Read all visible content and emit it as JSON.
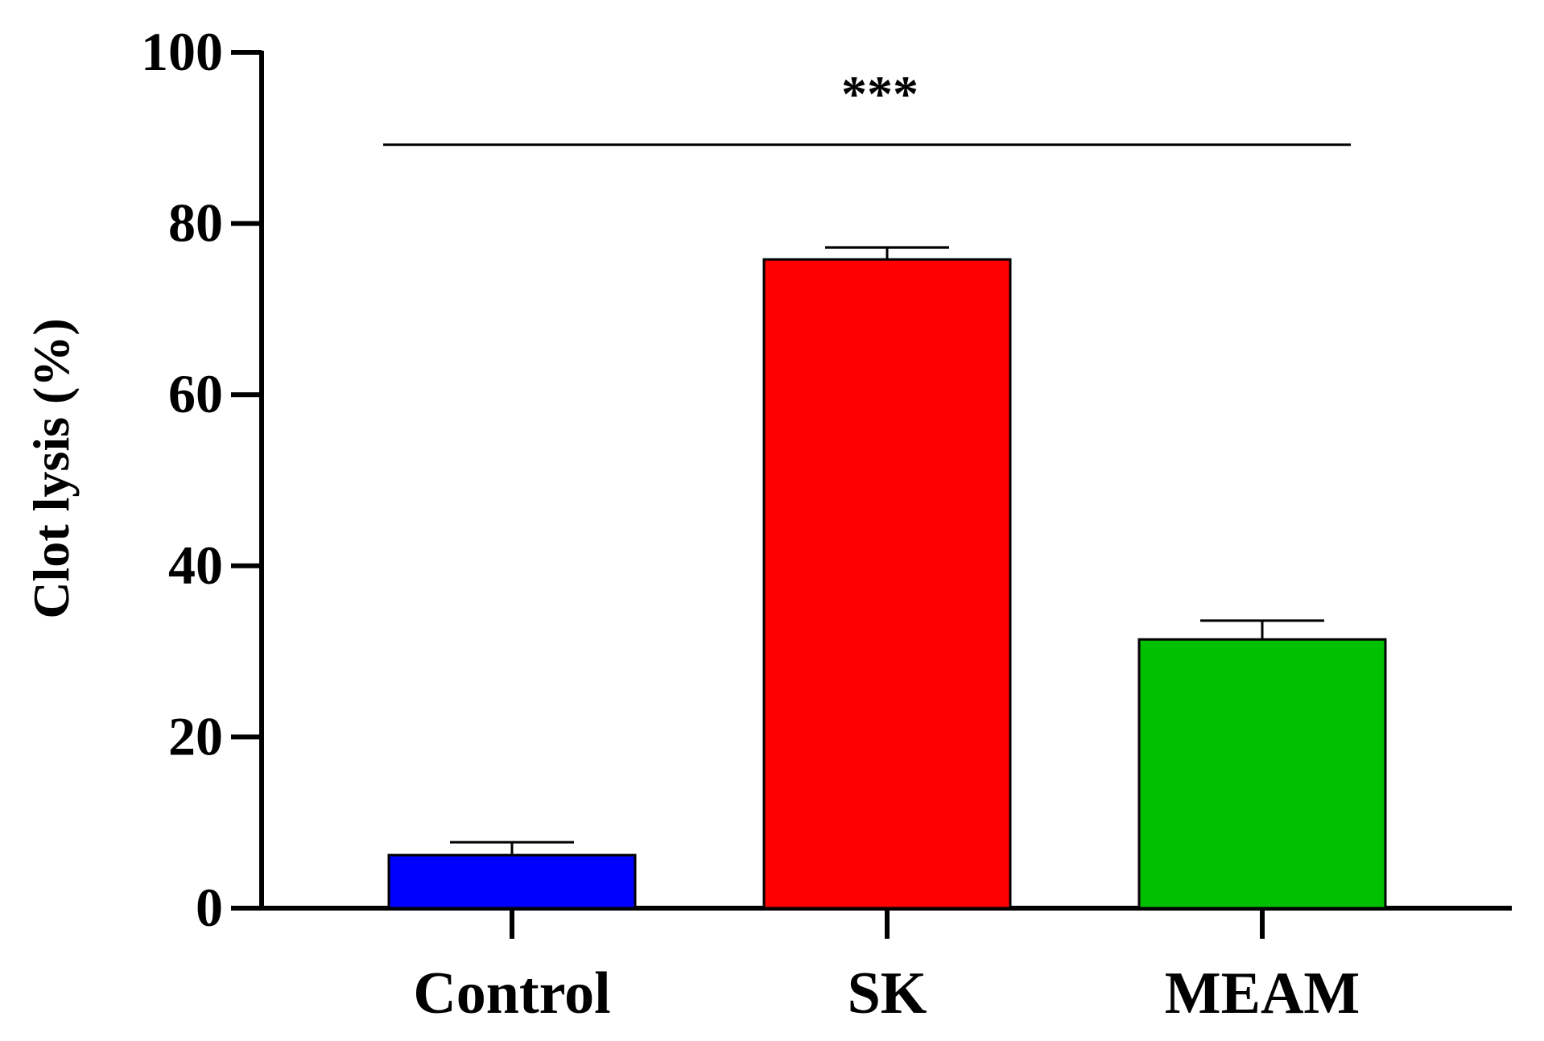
{
  "chart_data": {
    "type": "bar",
    "title": "",
    "xlabel": "",
    "ylabel": "Clot lysis (%)",
    "ylim": [
      0,
      100
    ],
    "yticks": [
      0,
      20,
      40,
      60,
      80,
      100
    ],
    "grid": false,
    "legend": "none",
    "categories": [
      "Control",
      "SK",
      "MEAM"
    ],
    "values": [
      6.2,
      75.8,
      31.4
    ],
    "errors": [
      1.5,
      1.4,
      2.2
    ],
    "colors": [
      "#0000ff",
      "#ff0000",
      "#00c000"
    ],
    "annotations": [
      {
        "text": "***",
        "from": "Control",
        "to": "MEAM",
        "y": 89.2
      }
    ]
  }
}
